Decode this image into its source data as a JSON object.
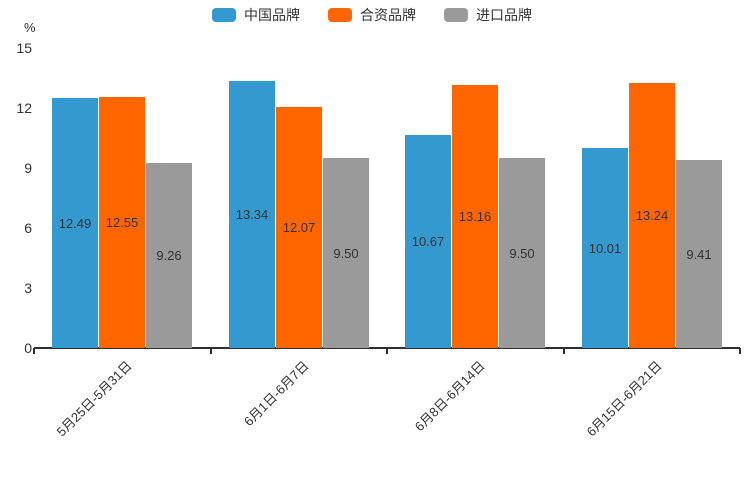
{
  "chart_data": {
    "type": "bar",
    "title": "",
    "unit_label": "%",
    "categories": [
      "5月25日-5月31日",
      "6月1日-6月7日",
      "6月8日-6月14日",
      "6月15日-6月21日"
    ],
    "series": [
      {
        "key": "china-brand",
        "name": "中国品牌",
        "color": "#3499CE",
        "values": [
          12.49,
          13.34,
          10.67,
          10.01
        ]
      },
      {
        "key": "joint-venture-brand",
        "name": "合资品牌",
        "color": "#FF6600",
        "values": [
          12.55,
          12.07,
          13.16,
          13.24
        ]
      },
      {
        "key": "import-brand",
        "name": "进口品牌",
        "color": "#9A9A9A",
        "values": [
          9.26,
          9.5,
          9.5,
          9.41
        ]
      }
    ],
    "yaxis": {
      "min": 0,
      "max": 15,
      "interval": 3,
      "ticks": [
        0,
        3,
        6,
        9,
        12,
        15
      ]
    },
    "value_label_decimals": 2,
    "legend_position": "top-center",
    "grid": false,
    "bar_label_position": "inside-center"
  },
  "colors": {
    "background": "#FFFFFF",
    "axis": "#2F2F2F",
    "text": "#333333"
  }
}
